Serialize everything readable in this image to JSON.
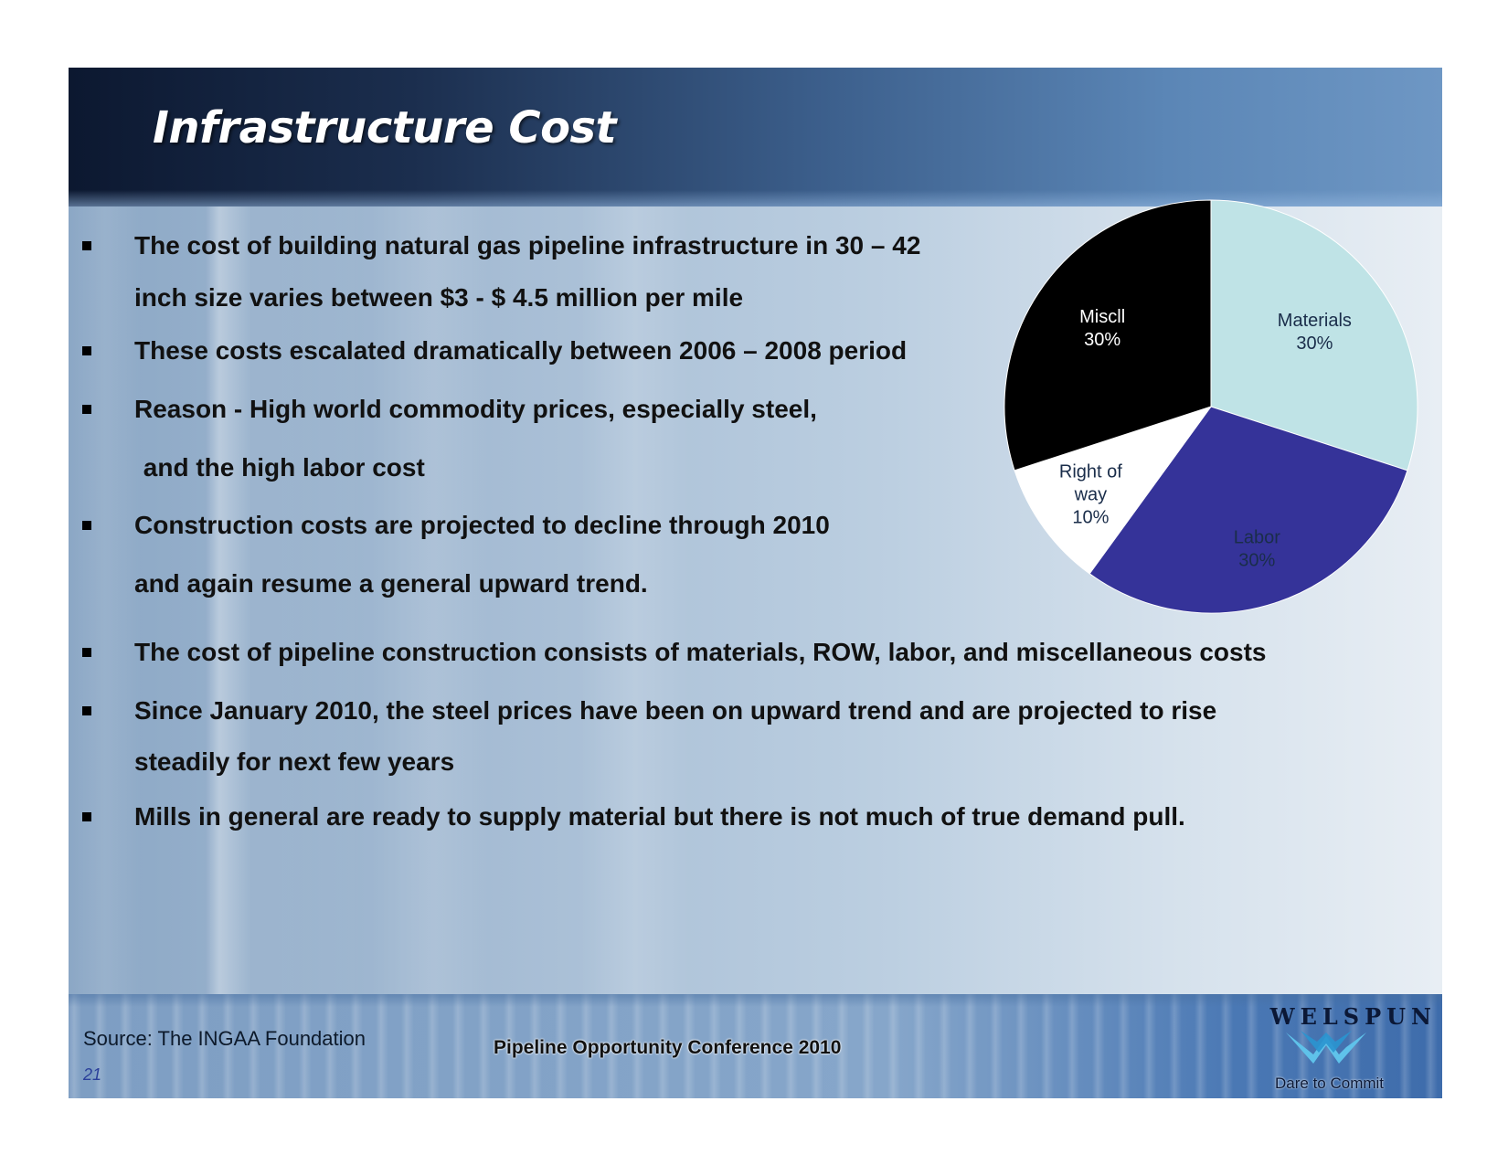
{
  "slide": {
    "title": "Infrastructure Cost",
    "bullets": [
      {
        "lines": [
          "The cost of building natural gas pipeline infrastructure in 30 – 42",
          "inch size varies between $3 - $ 4.5 million per mile"
        ]
      },
      {
        "lines": [
          "These costs escalated dramatically between 2006 – 2008 period"
        ]
      },
      {
        "lines": [
          "Reason - High world commodity prices, especially steel,",
          " and the high labor cost"
        ]
      },
      {
        "lines": [
          "Construction costs are projected to decline through 2010",
          "and again resume a general upward trend."
        ]
      },
      {
        "lines": [
          "The cost of pipeline construction consists of materials, ROW, labor, and miscellaneous costs"
        ]
      },
      {
        "lines": [
          "Since January 2010, the steel prices have been on upward trend and are projected to rise",
          "steadily for next few years"
        ]
      },
      {
        "lines": [
          "Mills in general are ready to supply material but there is not much of true demand pull."
        ]
      }
    ]
  },
  "chart_data": {
    "type": "pie",
    "slices": [
      {
        "label": "Materials",
        "value_label": "30%",
        "value": 30,
        "color": "#bfe3e6"
      },
      {
        "label": "Labor",
        "value_label": "30%",
        "value": 30,
        "color": "#353399"
      },
      {
        "label": "Right of way",
        "label_lines": [
          "Right of",
          "way"
        ],
        "value_label": "10%",
        "value": 10,
        "color": "#ffffff"
      },
      {
        "label": "Miscll",
        "value_label": "30%",
        "value": 30,
        "color": "#000000"
      }
    ]
  },
  "footer": {
    "source": "Source: The INGAA Foundation",
    "page_number": "21",
    "conference": "Pipeline Opportunity Conference 2010",
    "brand_name": "WELSPUN",
    "tagline": "Dare to Commit"
  }
}
